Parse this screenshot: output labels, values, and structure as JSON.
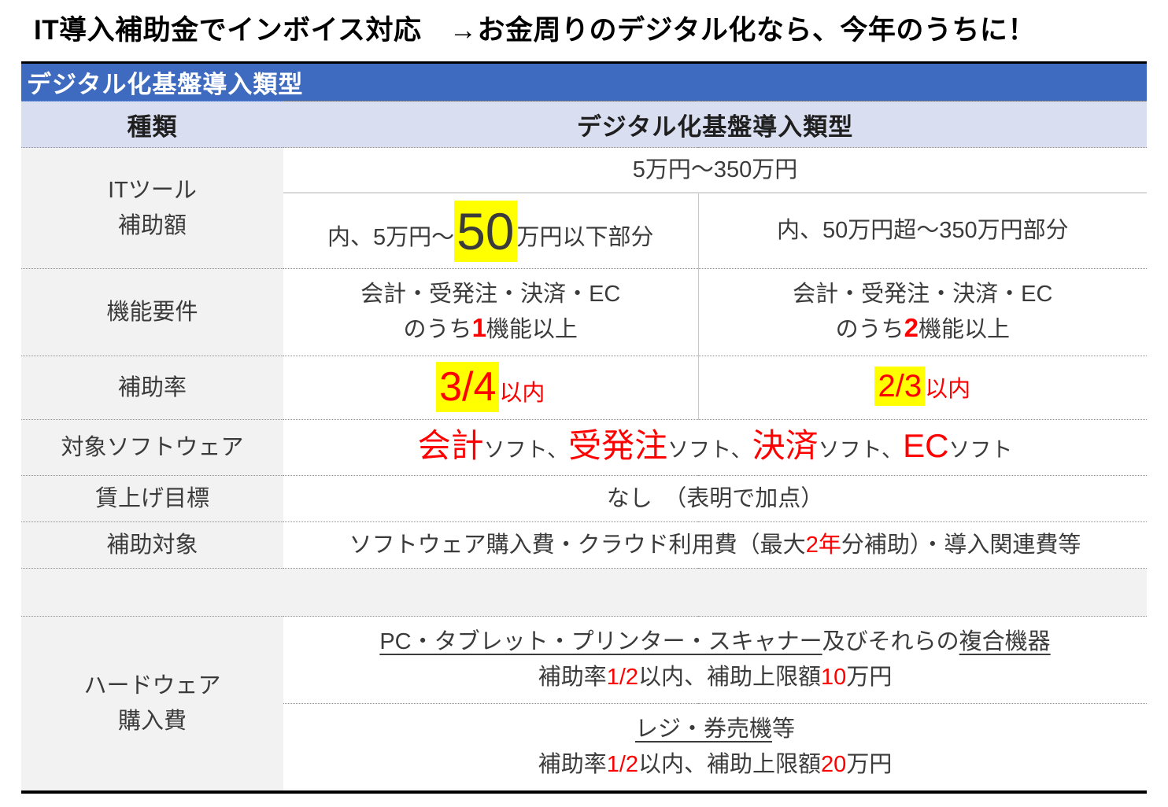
{
  "page_title": "IT導入補助金でインボイス対応　→お金周りのデジタル化なら、今年のうちに！",
  "colors": {
    "banner_blue": "#3E6BBF",
    "header_lavender": "#D9DFF1",
    "label_gray": "#F2F2F2",
    "accent_red": "#FF0000",
    "highlight_yellow": "#FFFF00"
  },
  "table": {
    "banner": "デジタル化基盤導入類型",
    "header": {
      "col1": "種類",
      "col2": "デジタル化基盤導入類型"
    },
    "rows": {
      "it_tool": {
        "label_line1": "ITツール",
        "label_line2": "補助額",
        "range_total": "5万円～350万円",
        "left": {
          "pre": "内、5万円～",
          "big": "50",
          "post": "万円以下部分"
        },
        "right": "内、50万円超～350万円部分"
      },
      "kinou": {
        "label": "機能要件",
        "left": {
          "line1": "会計・受発注・決済・EC",
          "pre": "のうち",
          "num": "1",
          "post": "機能以上"
        },
        "right": {
          "line1": "会計・受発注・決済・EC",
          "pre": "のうち",
          "num": "2",
          "post": "機能以上"
        }
      },
      "hojoritsu": {
        "label": "補助率",
        "left": {
          "frac": "3/4",
          "suffix": "以内"
        },
        "right": {
          "frac": "2/3",
          "suffix": "以内"
        }
      },
      "software": {
        "label": "対象ソフトウェア",
        "parts": [
          {
            "kw": "会計",
            "rest": "ソフト、"
          },
          {
            "kw": "受発注",
            "rest": "ソフト、"
          },
          {
            "kw": "決済",
            "rest": "ソフト、"
          },
          {
            "kw": "EC",
            "rest": "ソフト"
          }
        ]
      },
      "chinage": {
        "label": "賃上げ目標",
        "value": "なし　（表明で加点）"
      },
      "hojo_taisho": {
        "label": "補助対象",
        "pre": "ソフトウェア購入費・クラウド利用費（最大",
        "red": "2年",
        "post": "分補助）・導入関連費等"
      },
      "hardware": {
        "label_line1": "ハードウェア",
        "label_line2": "購入費",
        "row1": {
          "underline1": "PC・タブレット・プリンター・スキャナー",
          "mid": "及びそれらの",
          "underline2": "複合機器",
          "line2_pre": "補助率",
          "line2_red1": "1/2",
          "line2_mid": "以内、補助上限額",
          "line2_red2": "10",
          "line2_post": "万円"
        },
        "row2": {
          "underline1": "レジ・券売機",
          "mid": "等",
          "line2_pre": "補助率",
          "line2_red1": "1/2",
          "line2_mid": "以内、補助上限額",
          "line2_red2": "20",
          "line2_post": "万円"
        }
      }
    }
  }
}
